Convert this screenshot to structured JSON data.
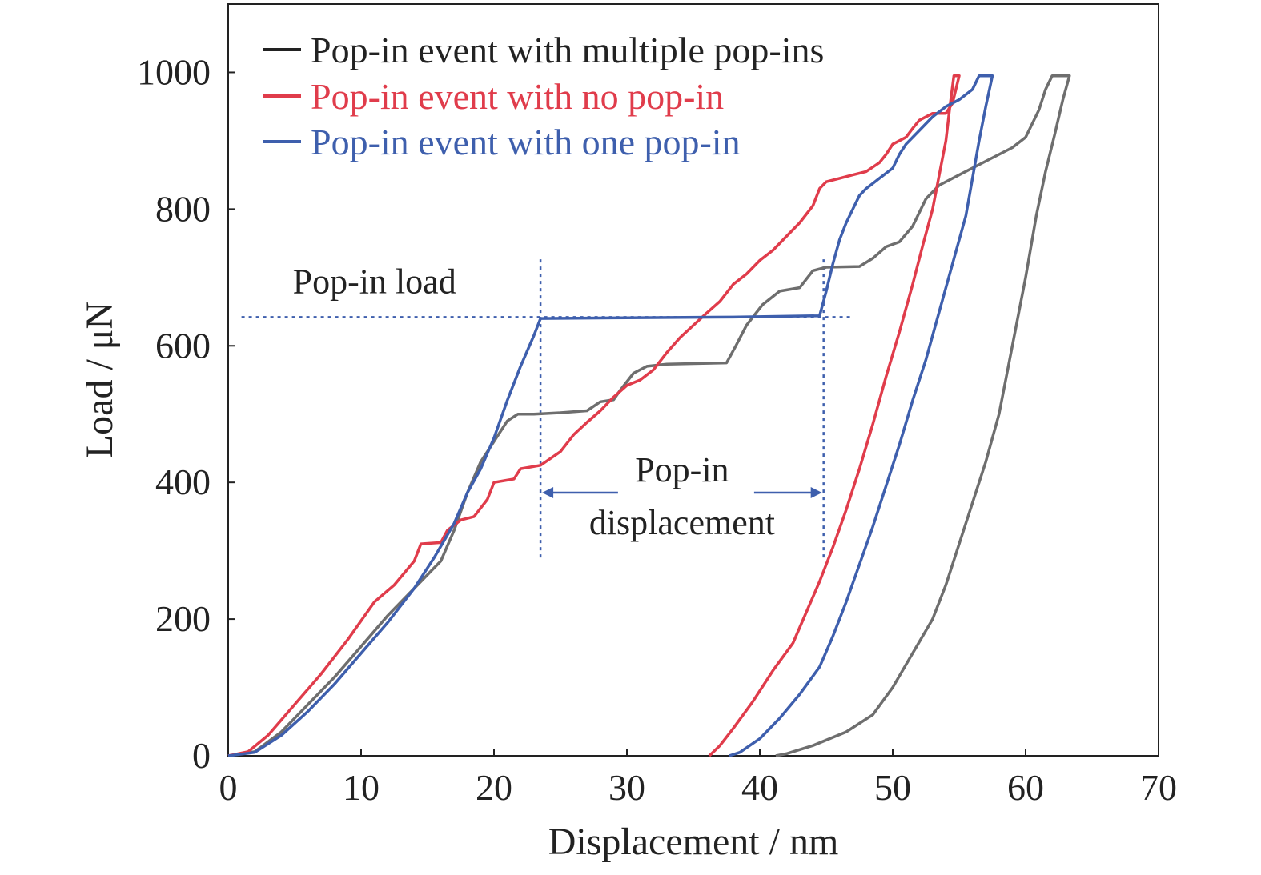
{
  "chart_data": {
    "type": "line",
    "xlabel": "Displacement / nm",
    "ylabel": "Load / μN",
    "xlim": [
      0,
      70
    ],
    "ylim": [
      0,
      1100
    ],
    "xticks": [
      0,
      10,
      20,
      30,
      40,
      50,
      60,
      70
    ],
    "yticks": [
      0,
      200,
      400,
      600,
      800,
      1000
    ],
    "grid": false,
    "legend_position": "top-left",
    "series": [
      {
        "name": "Pop-in event with multiple pop-ins",
        "color": "#6e6e6e",
        "points": [
          [
            0,
            0
          ],
          [
            2,
            6
          ],
          [
            4,
            35
          ],
          [
            6,
            75
          ],
          [
            8,
            115
          ],
          [
            10,
            160
          ],
          [
            12,
            205
          ],
          [
            14,
            245
          ],
          [
            16,
            285
          ],
          [
            17,
            330
          ],
          [
            18,
            385
          ],
          [
            19,
            430
          ],
          [
            20,
            460
          ],
          [
            21,
            490
          ],
          [
            21.8,
            500
          ],
          [
            23,
            500
          ],
          [
            25,
            502
          ],
          [
            27,
            505
          ],
          [
            28,
            518
          ],
          [
            29,
            521
          ],
          [
            29.5,
            535
          ],
          [
            30.5,
            560
          ],
          [
            31.5,
            570
          ],
          [
            33,
            573
          ],
          [
            35,
            574
          ],
          [
            37.5,
            575
          ],
          [
            38.2,
            600
          ],
          [
            39,
            630
          ],
          [
            40.2,
            660
          ],
          [
            41.5,
            680
          ],
          [
            43,
            685
          ],
          [
            44,
            710
          ],
          [
            45,
            715
          ],
          [
            47.5,
            716
          ],
          [
            48.5,
            728
          ],
          [
            49.5,
            745
          ],
          [
            50.5,
            752
          ],
          [
            51.5,
            775
          ],
          [
            52.5,
            815
          ],
          [
            53.5,
            835
          ],
          [
            55,
            850
          ],
          [
            57,
            870
          ],
          [
            59,
            890
          ],
          [
            60,
            905
          ],
          [
            61,
            945
          ],
          [
            61.5,
            975
          ],
          [
            62,
            995
          ],
          [
            63.3,
            995
          ],
          [
            62.8,
            960
          ],
          [
            62.2,
            910
          ],
          [
            61.5,
            855
          ],
          [
            60.8,
            790
          ],
          [
            60,
            700
          ],
          [
            59,
            600
          ],
          [
            58,
            500
          ],
          [
            57,
            430
          ],
          [
            56,
            370
          ],
          [
            55,
            310
          ],
          [
            54,
            250
          ],
          [
            53,
            200
          ],
          [
            51.5,
            150
          ],
          [
            50,
            100
          ],
          [
            48.5,
            60
          ],
          [
            46.5,
            35
          ],
          [
            44,
            15
          ],
          [
            42,
            3
          ],
          [
            41.2,
            0
          ]
        ]
      },
      {
        "name": "Pop-in event with no pop-in",
        "color": "#e03c4b",
        "points": [
          [
            0,
            0
          ],
          [
            1.5,
            6
          ],
          [
            3,
            30
          ],
          [
            5,
            75
          ],
          [
            7,
            120
          ],
          [
            9,
            170
          ],
          [
            11,
            225
          ],
          [
            12.5,
            250
          ],
          [
            14,
            285
          ],
          [
            14.5,
            310
          ],
          [
            16,
            312
          ],
          [
            16.5,
            330
          ],
          [
            17.5,
            345
          ],
          [
            18.5,
            350
          ],
          [
            19.5,
            375
          ],
          [
            20,
            400
          ],
          [
            21.5,
            405
          ],
          [
            22,
            420
          ],
          [
            23.5,
            425
          ],
          [
            25,
            445
          ],
          [
            26,
            470
          ],
          [
            27,
            488
          ],
          [
            28,
            505
          ],
          [
            29,
            525
          ],
          [
            30,
            542
          ],
          [
            31,
            550
          ],
          [
            32,
            565
          ],
          [
            33,
            590
          ],
          [
            34,
            612
          ],
          [
            35,
            630
          ],
          [
            36,
            648
          ],
          [
            37,
            665
          ],
          [
            38,
            690
          ],
          [
            39,
            705
          ],
          [
            40,
            725
          ],
          [
            41,
            740
          ],
          [
            42,
            760
          ],
          [
            43,
            780
          ],
          [
            44,
            805
          ],
          [
            44.5,
            830
          ],
          [
            45,
            840
          ],
          [
            46,
            845
          ],
          [
            47,
            850
          ],
          [
            48,
            855
          ],
          [
            49,
            868
          ],
          [
            49.5,
            880
          ],
          [
            50,
            895
          ],
          [
            51,
            905
          ],
          [
            51.5,
            918
          ],
          [
            52,
            930
          ],
          [
            53,
            940
          ],
          [
            54,
            940
          ],
          [
            54.5,
            955
          ],
          [
            55,
            995
          ],
          [
            54.6,
            995
          ],
          [
            54.3,
            950
          ],
          [
            54,
            900
          ],
          [
            53.5,
            850
          ],
          [
            53,
            800
          ],
          [
            52.3,
            750
          ],
          [
            51.5,
            690
          ],
          [
            50.5,
            620
          ],
          [
            49.5,
            555
          ],
          [
            48.5,
            485
          ],
          [
            47.5,
            420
          ],
          [
            46.5,
            360
          ],
          [
            45.5,
            305
          ],
          [
            44.5,
            255
          ],
          [
            43.5,
            210
          ],
          [
            42.5,
            165
          ],
          [
            41,
            125
          ],
          [
            39.5,
            80
          ],
          [
            38,
            40
          ],
          [
            37,
            15
          ],
          [
            36.2,
            0
          ]
        ]
      },
      {
        "name": "Pop-in event with one pop-in",
        "color": "#3e5fad",
        "points": [
          [
            0,
            0
          ],
          [
            2,
            5
          ],
          [
            4,
            30
          ],
          [
            6,
            65
          ],
          [
            8,
            105
          ],
          [
            10,
            150
          ],
          [
            12,
            195
          ],
          [
            14,
            245
          ],
          [
            15.5,
            290
          ],
          [
            17,
            340
          ],
          [
            18,
            385
          ],
          [
            19,
            420
          ],
          [
            20,
            465
          ],
          [
            21,
            520
          ],
          [
            22,
            570
          ],
          [
            23,
            615
          ],
          [
            23.5,
            640
          ],
          [
            30,
            641
          ],
          [
            38,
            642
          ],
          [
            44.5,
            644
          ],
          [
            45,
            680
          ],
          [
            45.5,
            720
          ],
          [
            46,
            755
          ],
          [
            46.5,
            780
          ],
          [
            47,
            800
          ],
          [
            47.5,
            820
          ],
          [
            48,
            830
          ],
          [
            49,
            845
          ],
          [
            50,
            860
          ],
          [
            50.5,
            880
          ],
          [
            51,
            895
          ],
          [
            52,
            915
          ],
          [
            53,
            935
          ],
          [
            54,
            950
          ],
          [
            55,
            960
          ],
          [
            56,
            975
          ],
          [
            56.5,
            995
          ],
          [
            57.5,
            995
          ],
          [
            57,
            950
          ],
          [
            56.5,
            900
          ],
          [
            56,
            845
          ],
          [
            55.5,
            790
          ],
          [
            54.5,
            720
          ],
          [
            53.5,
            650
          ],
          [
            52.5,
            580
          ],
          [
            51.5,
            520
          ],
          [
            50.5,
            455
          ],
          [
            49.5,
            395
          ],
          [
            48.5,
            335
          ],
          [
            47.5,
            280
          ],
          [
            46.5,
            225
          ],
          [
            45.5,
            175
          ],
          [
            44.5,
            130
          ],
          [
            43,
            90
          ],
          [
            41.5,
            55
          ],
          [
            40,
            25
          ],
          [
            38.5,
            5
          ],
          [
            37.7,
            0
          ]
        ]
      }
    ],
    "annotations": [
      {
        "text": "Pop-in load",
        "type": "horizontal-line",
        "y": 642,
        "x_range": [
          1,
          47
        ]
      },
      {
        "text_line1": "Pop-in",
        "text_line2": "displacement",
        "type": "double-arrow",
        "y": 385,
        "x_range": [
          23.5,
          44.8
        ]
      },
      {
        "type": "vertical-line",
        "x": 23.5,
        "y_range": [
          290,
          730
        ]
      },
      {
        "type": "vertical-line",
        "x": 44.8,
        "y_range": [
          290,
          730
        ]
      }
    ]
  }
}
